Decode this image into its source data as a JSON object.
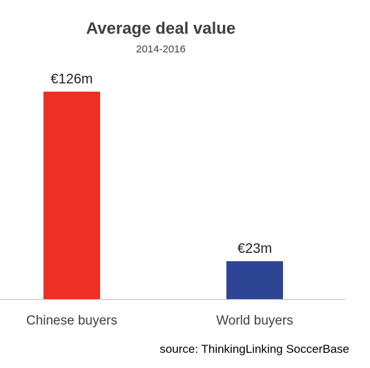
{
  "chart_data": {
    "type": "bar",
    "title": "Average deal value",
    "subtitle": "2014-2016",
    "categories": [
      "Chinese buyers",
      "World buyers"
    ],
    "values": [
      126,
      23
    ],
    "data_labels": [
      "€126m",
      "€23m"
    ],
    "colors": [
      "#ee3024",
      "#2e4595"
    ],
    "xlabel": "",
    "ylabel": "",
    "ylim": [
      0,
      126
    ],
    "grid": false,
    "legend": "none"
  },
  "source": "source:  ThinkingLinking SoccerBase"
}
